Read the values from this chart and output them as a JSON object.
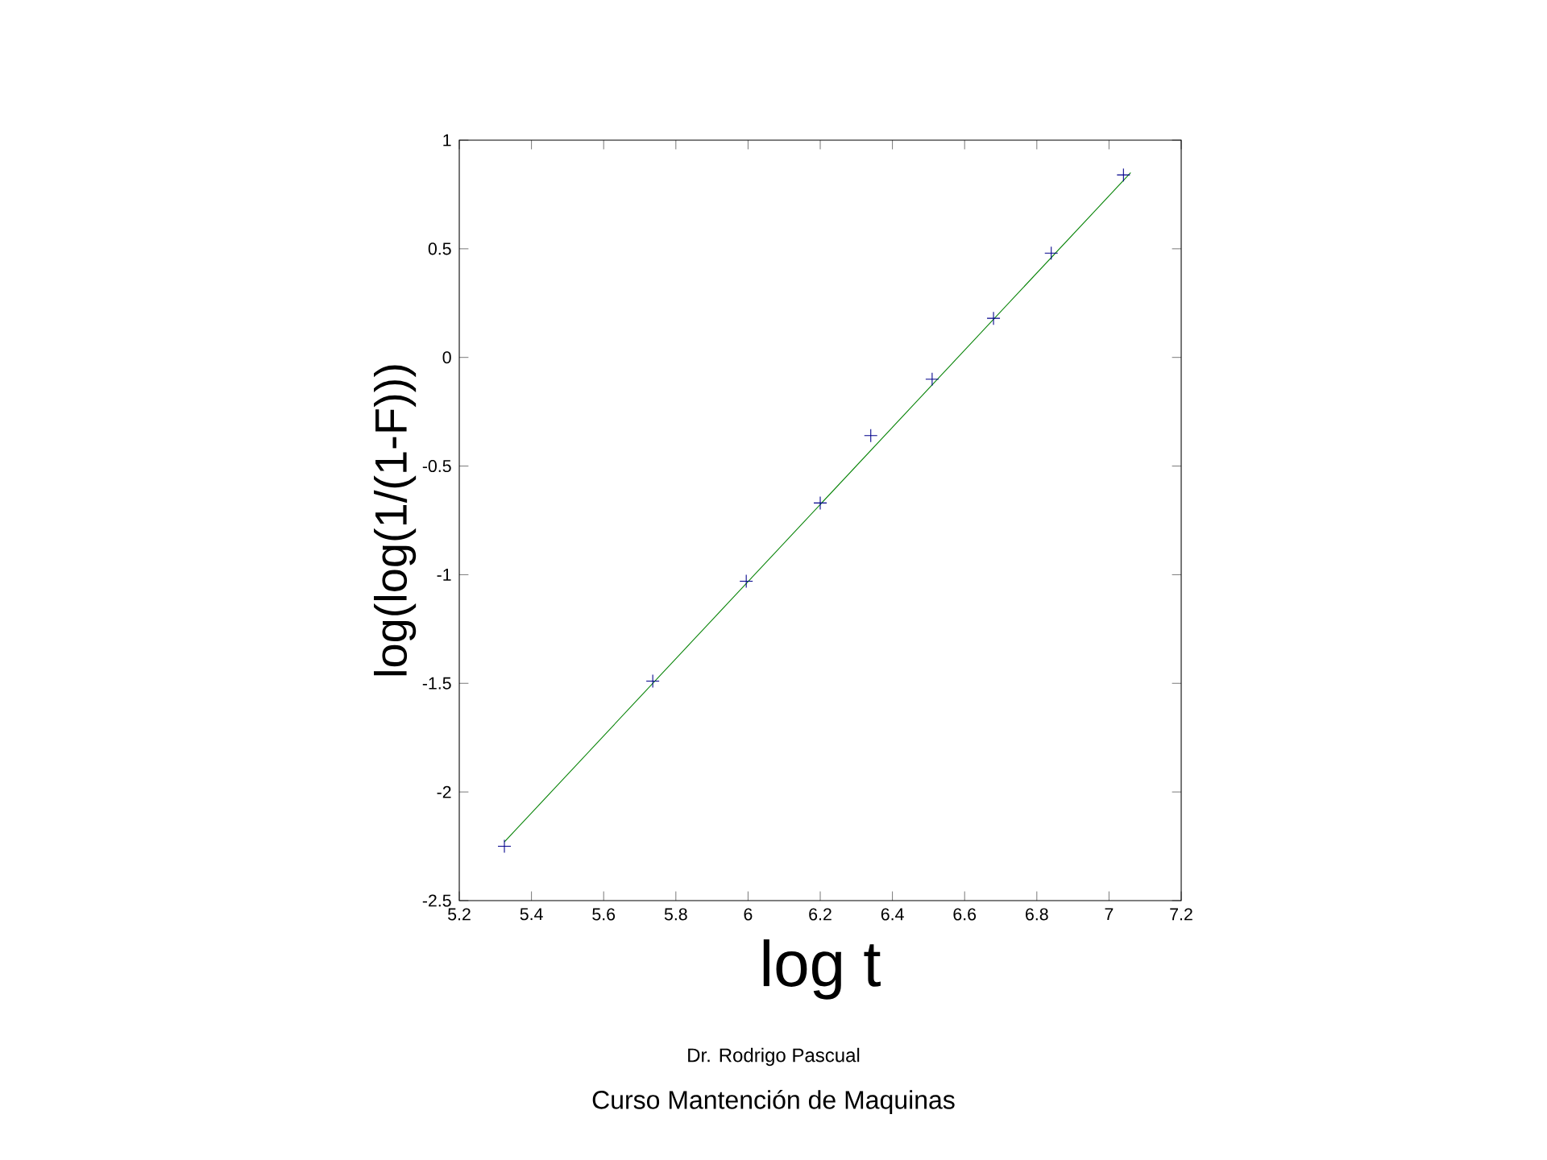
{
  "chart_data": {
    "type": "scatter",
    "xlabel": "log t",
    "ylabel": "log(log(1/(1-F)))",
    "xlim": [
      5.2,
      7.2
    ],
    "ylim": [
      -2.5,
      1
    ],
    "xticks": [
      5.2,
      5.4,
      5.6,
      5.8,
      6,
      6.2,
      6.4,
      6.6,
      6.8,
      7,
      7.2
    ],
    "yticks": [
      -2.5,
      -2,
      -1.5,
      -1,
      -0.5,
      0,
      0.5,
      1
    ],
    "grid": false,
    "series": [
      {
        "marker": "cross",
        "color": "#00008b",
        "x": [
          5.325,
          5.736,
          5.995,
          6.2,
          6.34,
          6.51,
          6.68,
          6.84,
          7.04
        ],
        "values": [
          -2.25,
          -1.49,
          -1.03,
          -0.67,
          -0.36,
          -0.1,
          0.18,
          0.48,
          0.84
        ]
      },
      {
        "type": "line",
        "marker": "none",
        "line_style": "solid",
        "color": "#008000",
        "x": [
          5.325,
          7.06
        ],
        "values": [
          -2.23,
          0.85
        ]
      }
    ],
    "annotations": [
      "Dr. Rodrigo Pascual",
      "Curso Mantención de Maquinas"
    ]
  }
}
